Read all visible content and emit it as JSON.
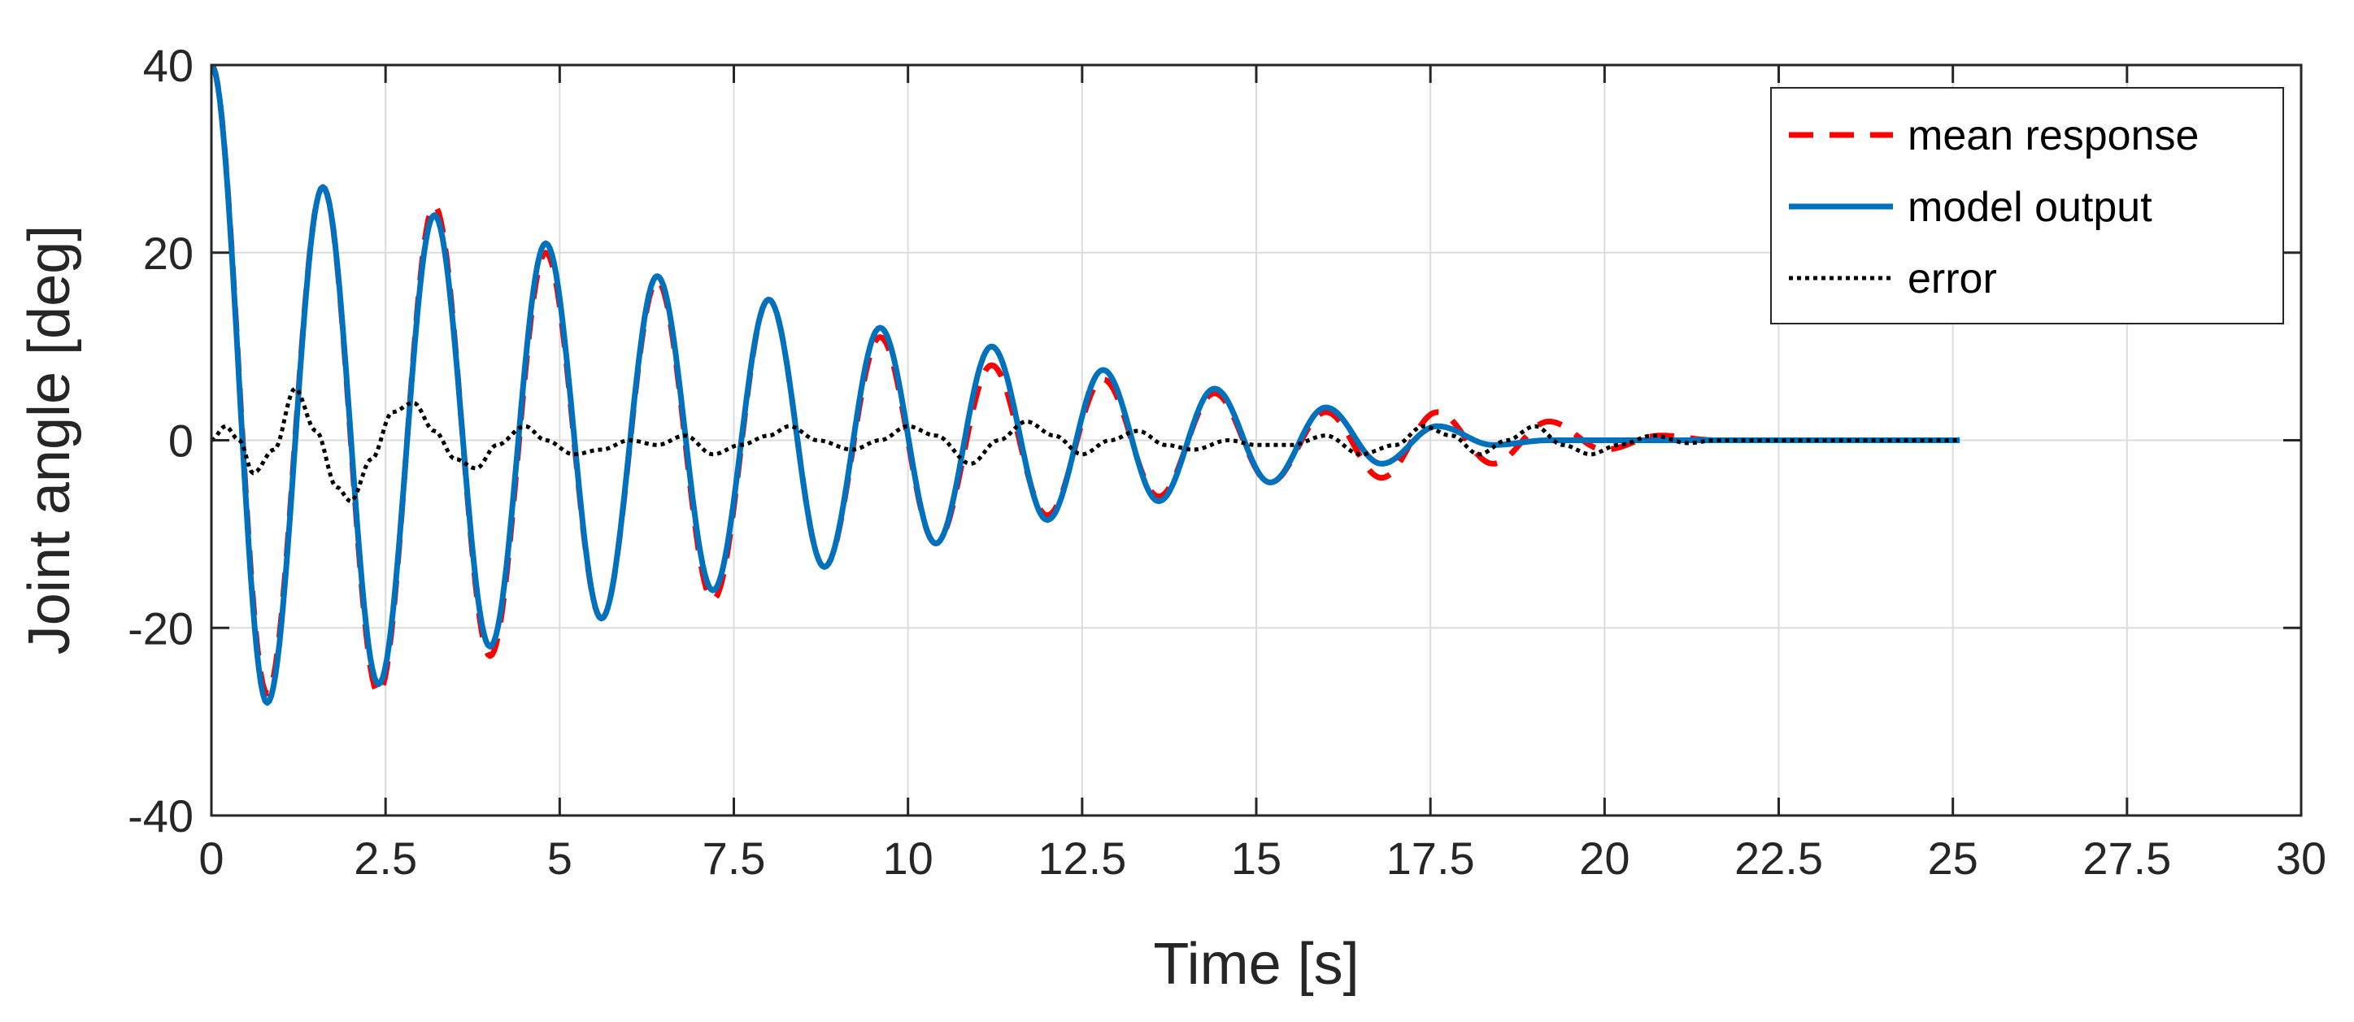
{
  "chart_data": {
    "type": "line",
    "title": "",
    "xlabel": "Time [s]",
    "ylabel": "Joint angle [deg]",
    "xlim": [
      0,
      30
    ],
    "ylim": [
      -40,
      40
    ],
    "grid": true,
    "legend_position": "top-right",
    "x_ticks": [
      0,
      2.5,
      5,
      7.5,
      10,
      12.5,
      15,
      17.5,
      20,
      22.5,
      25,
      27.5,
      30
    ],
    "x_tick_labels": [
      "0",
      "2.5",
      "5",
      "7.5",
      "10",
      "12.5",
      "15",
      "17.5",
      "20",
      "22.5",
      "25",
      "27.5",
      "30"
    ],
    "y_ticks": [
      -40,
      -20,
      0,
      20,
      40
    ],
    "y_tick_labels": [
      "-40",
      "-20",
      "0",
      "20",
      "40"
    ],
    "series": [
      {
        "name": "mean response",
        "color": "#ff0000",
        "style": "dashed",
        "points": [
          [
            0,
            40
          ],
          [
            0.8,
            -27
          ],
          [
            1.6,
            27
          ],
          [
            2.4,
            -27
          ],
          [
            3.2,
            25
          ],
          [
            4.0,
            -23
          ],
          [
            4.8,
            20
          ],
          [
            5.6,
            -19
          ],
          [
            6.4,
            17
          ],
          [
            7.2,
            -17
          ],
          [
            8.0,
            15
          ],
          [
            8.8,
            -13.5
          ],
          [
            9.6,
            11
          ],
          [
            10.4,
            -11
          ],
          [
            11.2,
            8
          ],
          [
            12.0,
            -8
          ],
          [
            12.8,
            6.5
          ],
          [
            13.6,
            -6
          ],
          [
            14.4,
            5
          ],
          [
            15.2,
            -4.5
          ],
          [
            16.0,
            3
          ],
          [
            16.8,
            -4
          ],
          [
            17.6,
            3
          ],
          [
            18.4,
            -2.5
          ],
          [
            19.2,
            2
          ],
          [
            20.0,
            -1
          ],
          [
            20.8,
            0.5
          ],
          [
            21.6,
            0
          ],
          [
            25.1,
            0
          ]
        ]
      },
      {
        "name": "model output",
        "color": "#0072bd",
        "style": "solid",
        "points": [
          [
            0,
            40
          ],
          [
            0.8,
            -28
          ],
          [
            1.6,
            27
          ],
          [
            2.4,
            -26
          ],
          [
            3.2,
            24
          ],
          [
            4.0,
            -22
          ],
          [
            4.8,
            21
          ],
          [
            5.6,
            -19
          ],
          [
            6.4,
            17.5
          ],
          [
            7.2,
            -16
          ],
          [
            8.0,
            15
          ],
          [
            8.8,
            -13.5
          ],
          [
            9.6,
            12
          ],
          [
            10.4,
            -11
          ],
          [
            11.2,
            10
          ],
          [
            12.0,
            -8.5
          ],
          [
            12.8,
            7.5
          ],
          [
            13.6,
            -6.5
          ],
          [
            14.4,
            5.5
          ],
          [
            15.2,
            -4.5
          ],
          [
            16.0,
            3.5
          ],
          [
            16.8,
            -2.5
          ],
          [
            17.6,
            1.5
          ],
          [
            18.4,
            -0.5
          ],
          [
            19.2,
            0
          ],
          [
            25.1,
            0
          ]
        ]
      },
      {
        "name": "error",
        "color": "#000000",
        "style": "dotted",
        "points": [
          [
            0,
            0
          ],
          [
            0.2,
            1.5
          ],
          [
            0.4,
            0
          ],
          [
            0.6,
            -3.5
          ],
          [
            0.9,
            -1
          ],
          [
            1.2,
            5.5
          ],
          [
            1.5,
            1
          ],
          [
            1.8,
            -5
          ],
          [
            2.0,
            -6.5
          ],
          [
            2.3,
            -2
          ],
          [
            2.6,
            3
          ],
          [
            2.9,
            4
          ],
          [
            3.2,
            1
          ],
          [
            3.5,
            -2
          ],
          [
            3.8,
            -3
          ],
          [
            4.1,
            -0.5
          ],
          [
            4.5,
            1.5
          ],
          [
            4.8,
            0
          ],
          [
            5.2,
            -1.5
          ],
          [
            5.6,
            -1
          ],
          [
            6.0,
            0
          ],
          [
            6.4,
            -0.5
          ],
          [
            6.8,
            0.5
          ],
          [
            7.2,
            -1.5
          ],
          [
            7.6,
            -0.5
          ],
          [
            8.0,
            0.5
          ],
          [
            8.3,
            1.5
          ],
          [
            8.7,
            0
          ],
          [
            9.2,
            -1
          ],
          [
            9.6,
            0
          ],
          [
            10.0,
            1.5
          ],
          [
            10.4,
            0.5
          ],
          [
            10.9,
            -2.5
          ],
          [
            11.3,
            0
          ],
          [
            11.7,
            2
          ],
          [
            12.1,
            0.5
          ],
          [
            12.5,
            -1.5
          ],
          [
            12.9,
            0
          ],
          [
            13.3,
            1
          ],
          [
            13.7,
            -0.5
          ],
          [
            14.1,
            -1
          ],
          [
            14.6,
            0
          ],
          [
            15.0,
            -0.5
          ],
          [
            15.5,
            -0.5
          ],
          [
            16.0,
            0.5
          ],
          [
            16.5,
            -1.5
          ],
          [
            17.0,
            -0.5
          ],
          [
            17.4,
            1.5
          ],
          [
            17.8,
            0.5
          ],
          [
            18.2,
            -1.5
          ],
          [
            18.6,
            0
          ],
          [
            19.0,
            1.5
          ],
          [
            19.4,
            -0.5
          ],
          [
            19.8,
            -1.5
          ],
          [
            20.2,
            -0.5
          ],
          [
            20.7,
            0.5
          ],
          [
            21.2,
            -0.3
          ],
          [
            21.6,
            0
          ],
          [
            25.1,
            0
          ]
        ]
      }
    ]
  }
}
